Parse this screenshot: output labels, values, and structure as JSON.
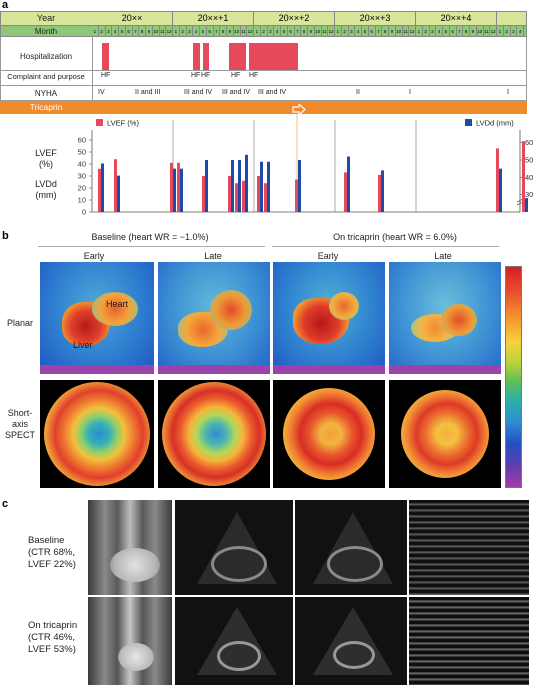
{
  "panels": {
    "a": "a",
    "b": "b",
    "c": "c"
  },
  "timeline": {
    "row_labels": {
      "year": "Year",
      "month": "Month",
      "hospitalization": "Hospitalization",
      "complaint": "Complaint and purpose",
      "nyha": "NYHA",
      "drug": "Tricaprin"
    },
    "years": [
      "20××",
      "20××+1",
      "20××+2",
      "20××+3",
      "20××+4"
    ],
    "months": [
      "1",
      "2",
      "3",
      "4",
      "5",
      "6",
      "7",
      "8",
      "9",
      "10",
      "11",
      "12"
    ],
    "last_year_months": [
      "1",
      "2",
      "3",
      "4"
    ],
    "complaint_labels": [
      "HF",
      "HF",
      "HF",
      "HF",
      "HF"
    ],
    "nyha_labels": [
      "IV",
      "II and III",
      "III and IV",
      "III and IV",
      "III and IV",
      "II",
      "I",
      "I"
    ],
    "colors": {
      "header_bg": "#d8e59b",
      "month_bg": "#8fc77a",
      "drug_bar": "#f08a2c",
      "lvef": "#e6495c",
      "lvdd": "#1f4aa8"
    }
  },
  "chart_data": {
    "type": "bar",
    "title": "",
    "series": [
      {
        "name": "LVEF (%)",
        "values": [
          36,
          44,
          41,
          41,
          30,
          30,
          24,
          26,
          30,
          24,
          27,
          33,
          31,
          53,
          59
        ]
      },
      {
        "name": "LVDd (mm)",
        "values": [
          48,
          41,
          45,
          45,
          50,
          50,
          50,
          53,
          49,
          49,
          50,
          52,
          44,
          45,
          28
        ]
      }
    ],
    "ylabel_left": "LVEF (%)",
    "ylabel_left2": "LVDd (mm)",
    "ylabel_right": "LVDd (mm)",
    "left_ticks": [
      "60",
      "50",
      "40",
      "30",
      "20",
      "10",
      "0"
    ],
    "right_ticks": [
      "60",
      "50",
      "40",
      "30"
    ],
    "ylim_left": [
      0,
      65
    ],
    "ylim_right": [
      20,
      65
    ]
  },
  "scintigraphy": {
    "baseline_header": "Baseline (heart WR = −1.0%)",
    "tricaprin_header": "On tricaprin (heart WR = 6.0%)",
    "early": "Early",
    "late": "Late",
    "row_planar": "Planar",
    "row_spect": "Short-axis SPECT",
    "heart_label": "Heart",
    "liver_label": "Liver"
  },
  "echo": {
    "baseline_label": "Baseline (CTR 68%, LVEF 22%)",
    "tricaprin_label": "On tricaprin (CTR 46%, LVEF 53%)"
  }
}
